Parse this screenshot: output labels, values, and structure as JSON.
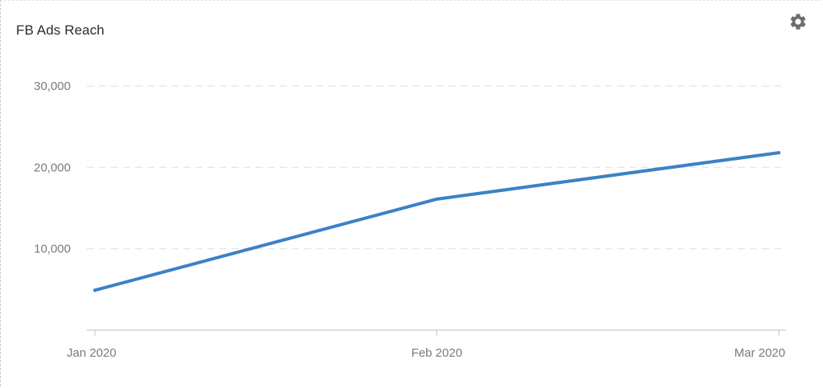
{
  "widget": {
    "title": "FB Ads Reach",
    "settings_icon": "gear-icon"
  },
  "colors": {
    "series": "#3b82c4",
    "grid": "#e3e3e3",
    "axis": "#cccccc",
    "tick_text": "#7a7a7a"
  },
  "chart_data": {
    "type": "line",
    "title": "FB Ads Reach",
    "categories": [
      "Jan 2020",
      "Feb 2020",
      "Mar 2020"
    ],
    "series": [
      {
        "values": [
          4900,
          16100,
          21800
        ]
      }
    ],
    "y_ticks": [
      10000,
      20000,
      30000
    ],
    "y_tick_labels": [
      "10,000",
      "20,000",
      "30,000"
    ],
    "ylim": [
      0,
      30000
    ],
    "grid": true,
    "legend": "none",
    "xlabel": "",
    "ylabel": ""
  }
}
